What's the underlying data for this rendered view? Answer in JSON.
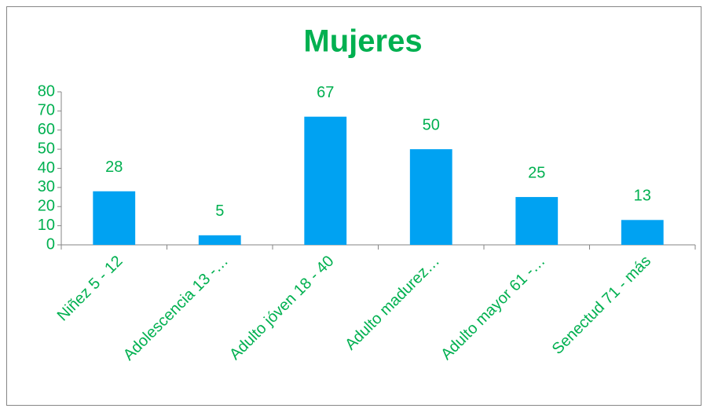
{
  "chart_data": {
    "type": "bar",
    "title": "Mujeres",
    "categories": [
      "Niñez 5 - 12",
      "Adolescencia 13 -…",
      "Adulto jóven 18 - 40",
      "Adulto madurez…",
      "Adulto mayor 61 -…",
      "Senectud 71 - más"
    ],
    "values": [
      28,
      5,
      67,
      50,
      25,
      13
    ],
    "color": "#00a2f2",
    "ylim": [
      0,
      80
    ],
    "yticks": [
      0,
      10,
      20,
      30,
      40,
      50,
      60,
      70,
      80
    ],
    "grid": false
  }
}
